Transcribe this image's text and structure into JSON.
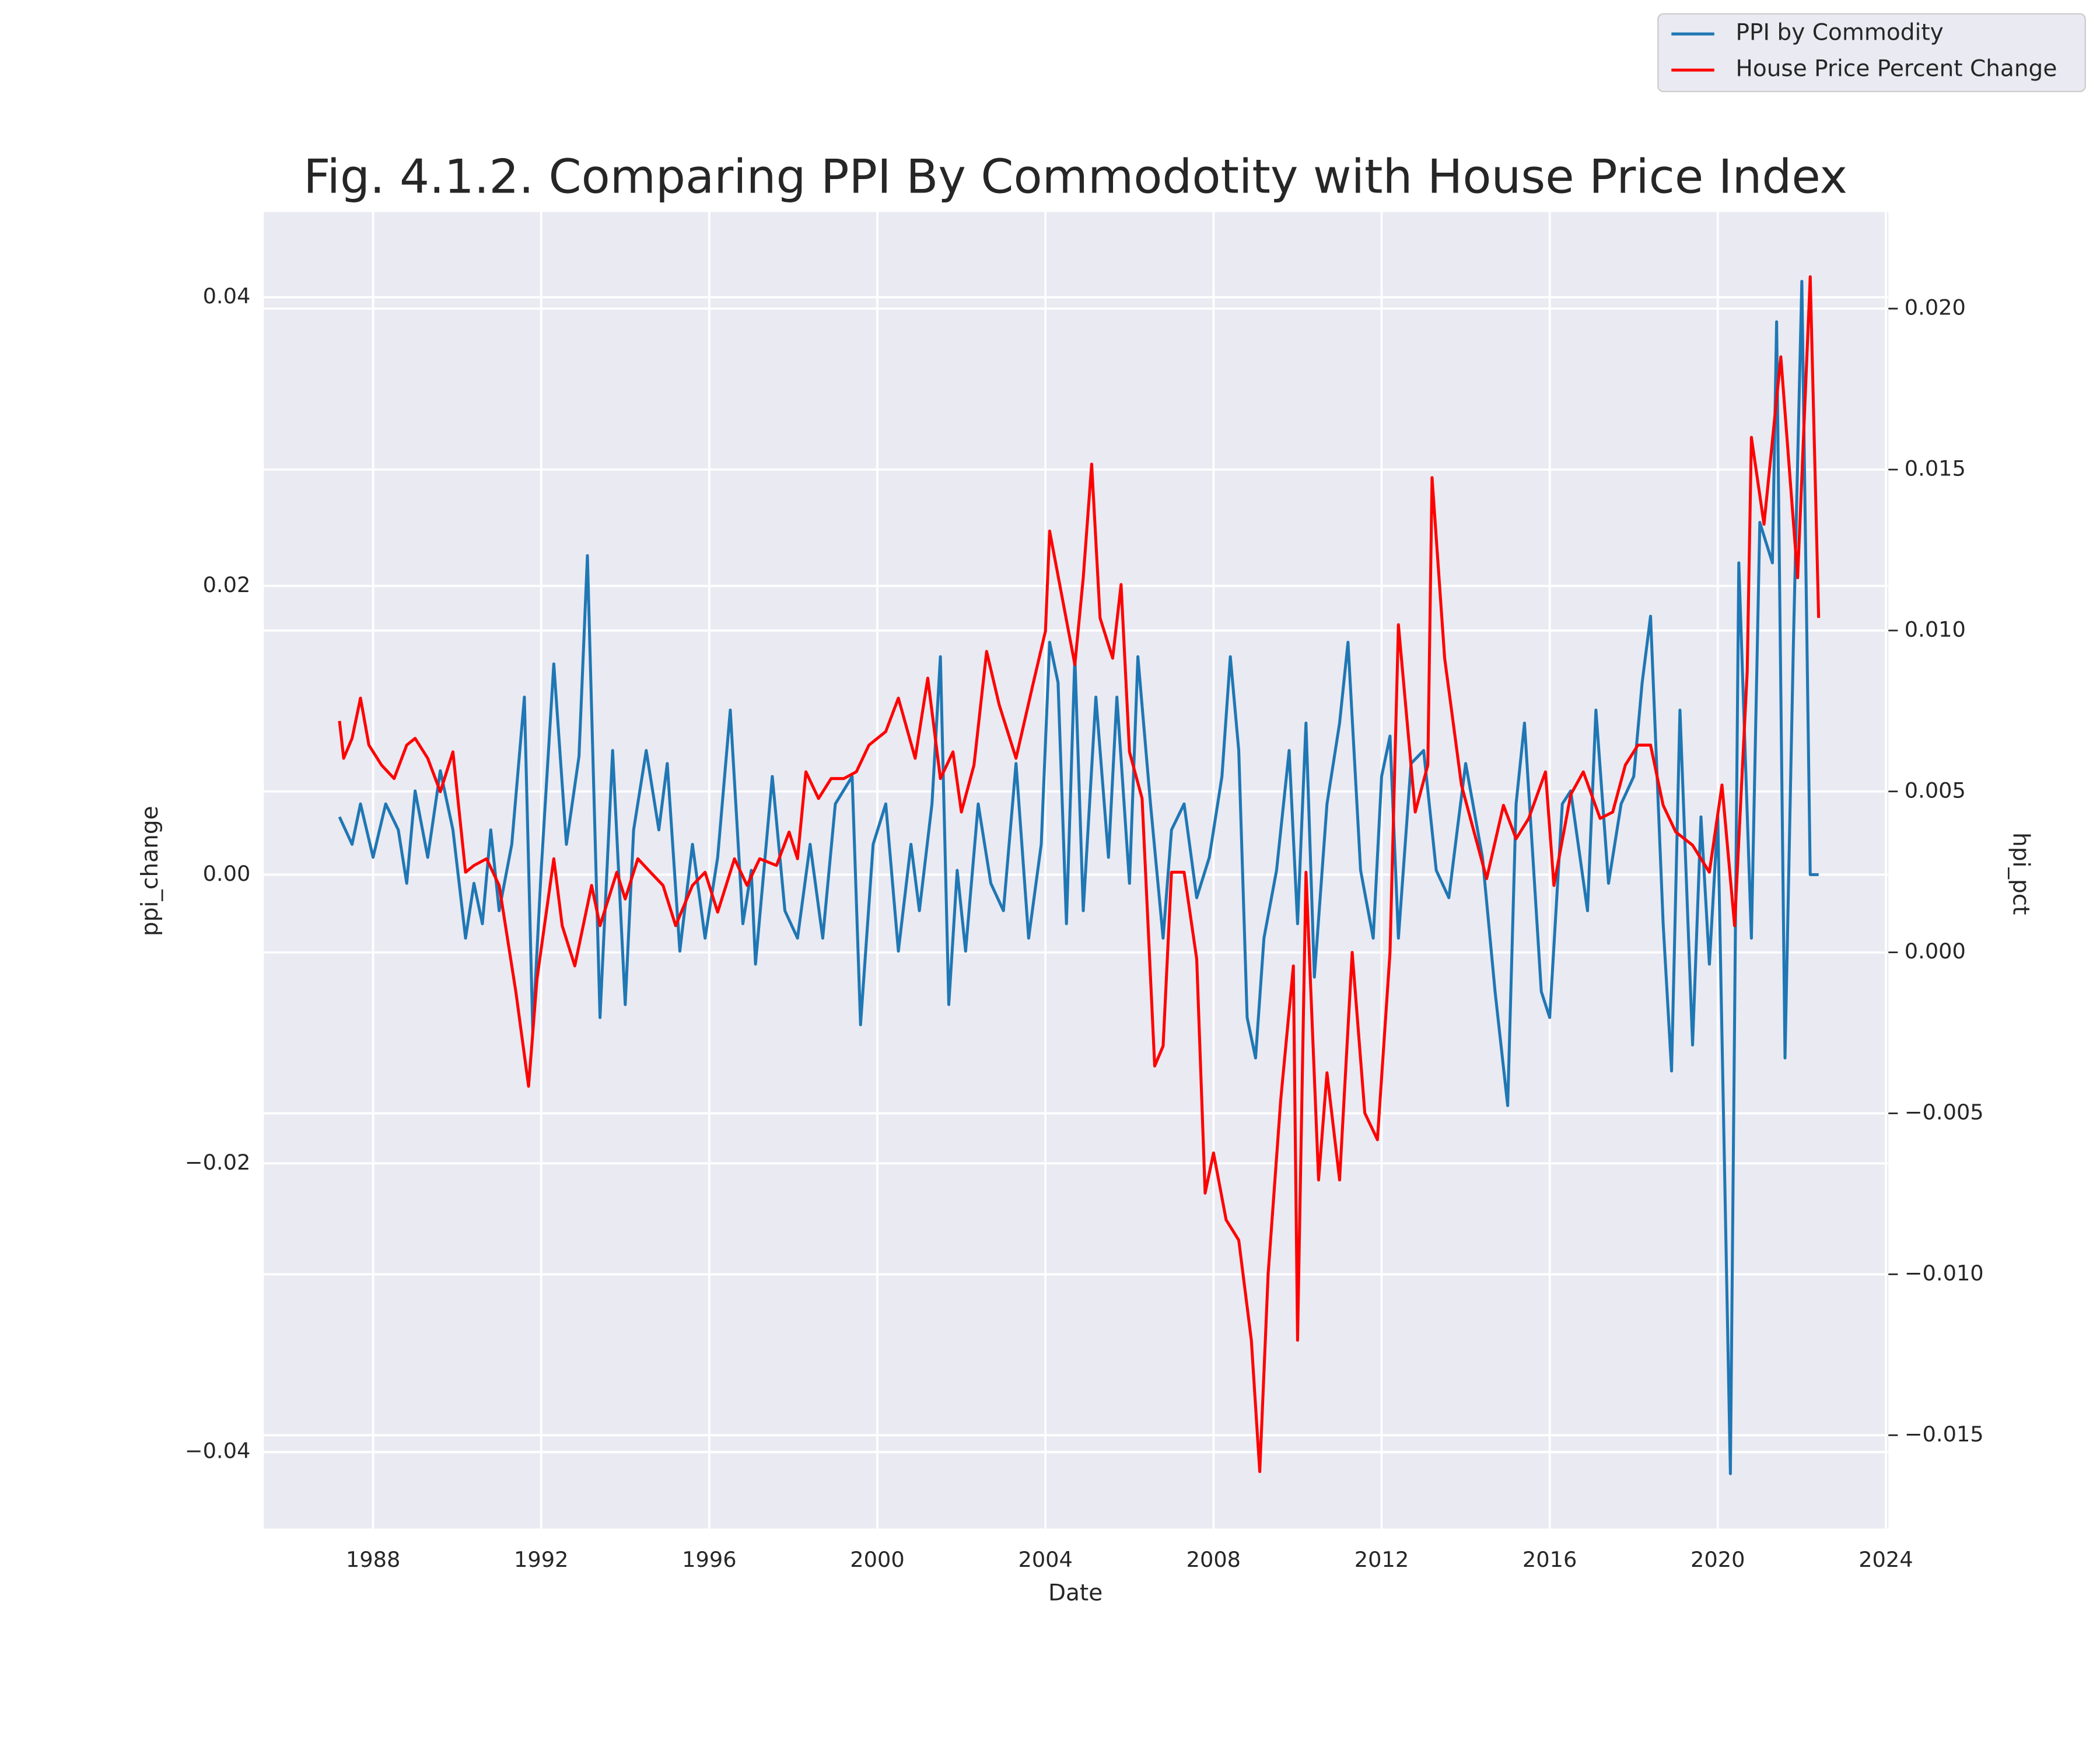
{
  "chart_data": {
    "type": "line",
    "title": "Fig. 4.1.2. Comparing PPI By Commodotity with House Price Index",
    "x_label": "Date",
    "y_label": "ppi_change",
    "y2_label": "hpi_pct",
    "xlim": [
      1985.4,
      2024.06
    ],
    "xticks": [
      1988,
      1992,
      1996,
      2000,
      2004,
      2008,
      2012,
      2016,
      2020,
      2024
    ],
    "ylim": [
      -0.0453,
      0.0459
    ],
    "yticks": [
      {
        "value": -0.04,
        "label": "−0.04"
      },
      {
        "value": -0.02,
        "label": "−0.02"
      },
      {
        "value": 0,
        "label": "0.00"
      },
      0.02,
      0.04
    ],
    "y2lim": [
      -0.0179,
      0.023
    ],
    "y2ticks": [
      {
        "value": -0.015,
        "label": "−0.015"
      },
      {
        "value": -0.01,
        "label": "−0.010"
      },
      {
        "value": -0.005,
        "label": "−0.005"
      },
      {
        "value": 0,
        "label": "0.000"
      },
      0.005,
      {
        "value": 0.01,
        "label": "0.010"
      },
      0.015,
      {
        "value": 0.02,
        "label": "0.020"
      }
    ],
    "grid": true,
    "legend": "upper right",
    "series": [
      {
        "name": "PPI by Commodity",
        "color": "#1f77b4",
        "axis": "y",
        "x": [
          1987.2,
          1987.5,
          1987.7,
          1988.0,
          1988.3,
          1988.6,
          1988.8,
          1989.0,
          1989.3,
          1989.6,
          1989.9,
          1990.2,
          1990.4,
          1990.6,
          1990.8,
          1991.0,
          1991.3,
          1991.6,
          1991.8,
          1992.0,
          1992.3,
          1992.6,
          1992.9,
          1993.1,
          1993.4,
          1993.7,
          1994.0,
          1994.2,
          1994.5,
          1994.8,
          1995.0,
          1995.3,
          1995.6,
          1995.9,
          1996.2,
          1996.5,
          1996.8,
          1997.0,
          1997.1,
          1997.5,
          1997.8,
          1998.1,
          1998.4,
          1998.7,
          1999.0,
          1999.4,
          1999.6,
          1999.9,
          2000.2,
          2000.5,
          2000.8,
          2001.0,
          2001.3,
          2001.5,
          2001.7,
          2001.9,
          2002.1,
          2002.4,
          2002.7,
          2003.0,
          2003.3,
          2003.6,
          2003.9,
          2004.1,
          2004.3,
          2004.5,
          2004.7,
          2004.9,
          2005.2,
          2005.5,
          2005.7,
          2006.0,
          2006.2,
          2006.5,
          2006.8,
          2007.0,
          2007.3,
          2007.6,
          2007.9,
          2008.2,
          2008.4,
          2008.6,
          2008.8,
          2009.0,
          2009.2,
          2009.5,
          2009.8,
          2010.0,
          2010.2,
          2010.4,
          2010.7,
          2011.0,
          2011.2,
          2011.5,
          2011.8,
          2012.0,
          2012.2,
          2012.4,
          2012.7,
          2013.0,
          2013.3,
          2013.6,
          2013.8,
          2014.0,
          2014.4,
          2014.7,
          2015.0,
          2015.2,
          2015.4,
          2015.8,
          2016.0,
          2016.3,
          2016.5,
          2016.9,
          2017.1,
          2017.4,
          2017.7,
          2018.0,
          2018.2,
          2018.4,
          2018.7,
          2018.9,
          2019.1,
          2019.4,
          2019.6,
          2019.8,
          2020.0,
          2020.3,
          2020.5,
          2020.8,
          2021.0,
          2021.3,
          2021.4,
          2021.6,
          2021.8,
          2022.0,
          2022.2,
          2022.4
        ],
        "values": [
          0.004,
          0.0021,
          0.0049,
          0.0012,
          0.0049,
          0.0031,
          -0.0006,
          0.0058,
          0.0012,
          0.0072,
          0.0031,
          -0.0044,
          -0.0006,
          -0.0034,
          0.0031,
          -0.0025,
          0.0021,
          0.0123,
          -0.0109,
          0.0003,
          0.0146,
          0.0021,
          0.0082,
          0.0221,
          -0.0099,
          0.0086,
          -0.009,
          0.0031,
          0.0086,
          0.0031,
          0.0077,
          -0.0053,
          0.0021,
          -0.0044,
          0.0012,
          0.0114,
          -0.0034,
          0.0003,
          -0.0062,
          0.0068,
          -0.0025,
          -0.0044,
          0.0021,
          -0.0044,
          0.0049,
          0.0068,
          -0.0104,
          0.0021,
          0.0049,
          -0.0053,
          0.0021,
          -0.0025,
          0.0049,
          0.0151,
          -0.009,
          0.0003,
          -0.0053,
          0.0049,
          -0.0006,
          -0.0025,
          0.0077,
          -0.0044,
          0.0021,
          0.0161,
          0.0133,
          -0.0034,
          0.0151,
          -0.0025,
          0.0123,
          0.0012,
          0.0123,
          -0.0006,
          0.0151,
          0.0049,
          -0.0044,
          0.0031,
          0.0049,
          -0.0016,
          0.0012,
          0.0068,
          0.0151,
          0.0086,
          -0.0099,
          -0.0127,
          -0.0044,
          0.0003,
          0.0086,
          -0.0034,
          0.0105,
          -0.0071,
          0.0049,
          0.0105,
          0.0161,
          0.0003,
          -0.0044,
          0.0068,
          0.0096,
          -0.0044,
          0.0077,
          0.0086,
          0.0003,
          -0.0016,
          0.0031,
          0.0077,
          0.0012,
          -0.0081,
          -0.016,
          0.0049,
          0.0105,
          -0.0081,
          -0.0099,
          0.0049,
          0.0058,
          -0.0025,
          0.0114,
          -0.0006,
          0.0049,
          0.0068,
          0.0133,
          0.0179,
          -0.0034,
          -0.0136,
          0.0114,
          -0.0118,
          0.004,
          -0.0062,
          0.004,
          -0.0415,
          0.0216,
          -0.0044,
          0.0244,
          0.0216,
          0.0383,
          -0.0127,
          0.0161,
          0.0411,
          0,
          0
        ]
      },
      {
        "name": "House Price Percent Change",
        "color": "#ff0000",
        "axis": "y2",
        "x": [
          1987.2,
          1987.3,
          1987.5,
          1987.7,
          1987.9,
          1988.2,
          1988.5,
          1988.8,
          1989.0,
          1989.3,
          1989.6,
          1989.9,
          1990.2,
          1990.4,
          1990.7,
          1991.0,
          1991.4,
          1991.7,
          1991.9,
          1992.3,
          1992.5,
          1992.8,
          1993.2,
          1993.4,
          1993.8,
          1994.0,
          1994.3,
          1994.6,
          1994.9,
          1995.2,
          1995.6,
          1995.9,
          1996.2,
          1996.6,
          1996.9,
          1997.2,
          1997.6,
          1997.9,
          1998.1,
          1998.3,
          1998.6,
          1998.9,
          1999.2,
          1999.5,
          1999.8,
          2000.2,
          2000.5,
          2000.9,
          2001.2,
          2001.5,
          2001.8,
          2002.0,
          2002.3,
          2002.6,
          2002.9,
          2003.3,
          2003.7,
          2004.0,
          2004.1,
          2004.4,
          2004.7,
          2004.9,
          2005.1,
          2005.3,
          2005.6,
          2005.8,
          2006.0,
          2006.3,
          2006.6,
          2006.8,
          2007.0,
          2007.3,
          2007.6,
          2007.8,
          2008.0,
          2008.3,
          2008.6,
          2008.9,
          2009.1,
          2009.3,
          2009.6,
          2009.9,
          2010.0,
          2010.2,
          2010.5,
          2010.7,
          2011.0,
          2011.3,
          2011.6,
          2011.9,
          2012.2,
          2012.4,
          2012.8,
          2013.1,
          2013.2,
          2013.5,
          2013.9,
          2014.2,
          2014.5,
          2014.9,
          2015.2,
          2015.5,
          2015.9,
          2016.1,
          2016.5,
          2016.8,
          2017.2,
          2017.5,
          2017.8,
          2018.1,
          2018.4,
          2018.7,
          2019.0,
          2019.4,
          2019.8,
          2020.1,
          2020.4,
          2020.7,
          2020.8,
          2021.1,
          2021.5,
          2021.9,
          2022.2,
          2022.4
        ],
        "values": [
          0.00719,
          0.00603,
          0.00665,
          0.0079,
          0.00644,
          0.00582,
          0.0054,
          0.00644,
          0.00665,
          0.00603,
          0.00499,
          0.00623,
          0.00249,
          0.0027,
          0.00291,
          0.00208,
          -0.00125,
          -0.00416,
          -0.00083,
          0.00291,
          0.00083,
          -0.00042,
          0.00208,
          0.00083,
          0.00249,
          0.00166,
          0.00291,
          0.00249,
          0.00208,
          0.00083,
          0.00208,
          0.00249,
          0.00125,
          0.00291,
          0.00208,
          0.00291,
          0.0027,
          0.00374,
          0.00291,
          0.00561,
          0.00478,
          0.0054,
          0.0054,
          0.00561,
          0.00644,
          0.00686,
          0.0079,
          0.00603,
          0.00852,
          0.0054,
          0.00623,
          0.00436,
          0.00582,
          0.00935,
          0.00769,
          0.00603,
          0.00831,
          0.00998,
          0.01309,
          0.01101,
          0.00894,
          0.01164,
          0.01517,
          0.01039,
          0.00914,
          0.01143,
          0.00623,
          0.00478,
          -0.00353,
          -0.00291,
          0.00249,
          0.00249,
          -0.00021,
          -0.00748,
          -0.00623,
          -0.00831,
          -0.00894,
          -0.01205,
          -0.01613,
          -0.00998,
          -0.00457,
          -0.00042,
          -0.01205,
          0.00249,
          -0.00707,
          -0.00374,
          -0.00707,
          0,
          -0.00499,
          -0.00582,
          0,
          0.01018,
          0.00436,
          0.00582,
          0.01475,
          0.00914,
          0.0052,
          0.00374,
          0.00229,
          0.00457,
          0.00353,
          0.00416,
          0.00561,
          0.00208,
          0.0049,
          0.00561,
          0.00416,
          0.00436,
          0.00582,
          0.00644,
          0.00644,
          0.00457,
          0.00374,
          0.00333,
          0.00249,
          0.0052,
          0.00083,
          0.00873,
          0.016,
          0.0133,
          0.0185,
          0.01164,
          0.02099,
          0.01039
        ]
      }
    ]
  }
}
